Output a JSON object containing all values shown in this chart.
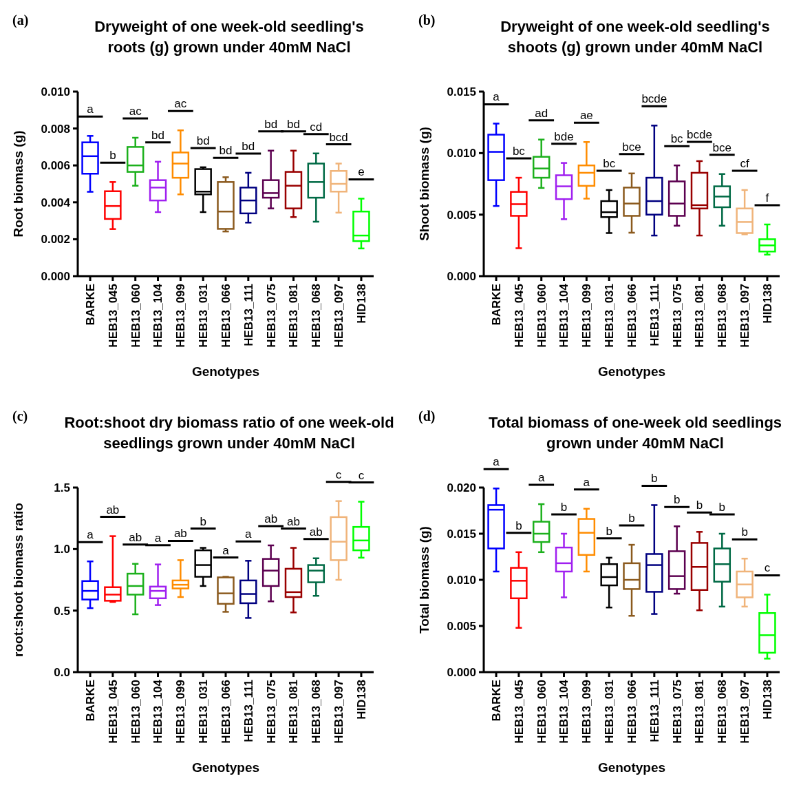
{
  "chart_data": [
    {
      "type": "box",
      "title": "Dryweight of one week-old seedling's\nroots (g) grown under 40mM NaCl",
      "xlabel": "Genotypes",
      "ylabel": "Root biomass (g)",
      "categories": [
        "BARKE",
        "HEB13_045",
        "HEB13_060",
        "HEB13_104",
        "HEB13_099",
        "HEB13_031",
        "HEB13_066",
        "HEB13_111",
        "HEB13_075",
        "HEB13_081",
        "HEB13_068",
        "HEB13_097",
        "HID138"
      ],
      "colors": [
        "#0000ff",
        "#ff0000",
        "#1cb01c",
        "#a020f0",
        "#ff8c00",
        "#000000",
        "#8b5a1e",
        "#000080",
        "#5c0050",
        "#990000",
        "#006a45",
        "#f0b47a",
        "#00ff00"
      ],
      "ylim": [
        0,
        0.01
      ],
      "yticks": [
        {
          "value": 0,
          "label": "0.000"
        },
        {
          "value": 0.002,
          "label": "0.002"
        },
        {
          "value": 0.004,
          "label": "0.004"
        },
        {
          "value": 0.006,
          "label": "0.006"
        },
        {
          "value": 0.008,
          "label": "0.008"
        },
        {
          "value": 0.01,
          "label": "0.010"
        }
      ],
      "boxes": [
        {
          "low": 0.00457,
          "q1": 0.00555,
          "median": 0.0065,
          "q3": 0.00725,
          "high": 0.0076
        },
        {
          "low": 0.00255,
          "q1": 0.0031,
          "median": 0.0038,
          "q3": 0.0046,
          "high": 0.0051
        },
        {
          "low": 0.0049,
          "q1": 0.00565,
          "median": 0.006,
          "q3": 0.007,
          "high": 0.0075
        },
        {
          "low": 0.00347,
          "q1": 0.0041,
          "median": 0.0048,
          "q3": 0.0052,
          "high": 0.0062
        },
        {
          "low": 0.00443,
          "q1": 0.00533,
          "median": 0.0061,
          "q3": 0.0067,
          "high": 0.0079
        },
        {
          "low": 0.00347,
          "q1": 0.00443,
          "median": 0.00458,
          "q3": 0.0058,
          "high": 0.0059
        },
        {
          "low": 0.00242,
          "q1": 0.00256,
          "median": 0.0035,
          "q3": 0.0051,
          "high": 0.00536
        },
        {
          "low": 0.0029,
          "q1": 0.0034,
          "median": 0.0041,
          "q3": 0.0048,
          "high": 0.0056
        },
        {
          "low": 0.00367,
          "q1": 0.00425,
          "median": 0.0045,
          "q3": 0.0052,
          "high": 0.0068
        },
        {
          "low": 0.0032,
          "q1": 0.00367,
          "median": 0.0049,
          "q3": 0.00565,
          "high": 0.0068
        },
        {
          "low": 0.00295,
          "q1": 0.00425,
          "median": 0.0051,
          "q3": 0.0061,
          "high": 0.00665
        },
        {
          "low": 0.00344,
          "q1": 0.00458,
          "median": 0.005,
          "q3": 0.0057,
          "high": 0.0061
        },
        {
          "low": 0.0015,
          "q1": 0.0019,
          "median": 0.0022,
          "q3": 0.0035,
          "high": 0.0042
        }
      ],
      "annotations": [
        "(a)",
        "a",
        "b",
        "ac",
        "bd",
        "ac",
        "bd",
        "bd",
        "bd",
        "bd",
        "bd",
        "cd",
        "bcd",
        "e"
      ]
    },
    {
      "type": "box",
      "title": "Dryweight of one week-old seedling's\nshoots (g) grown under 40mM NaCl",
      "xlabel": "Genotypes",
      "ylabel": "Shoot biomass (g)",
      "categories": [
        "BARKE",
        "HEB13_045",
        "HEB13_060",
        "HEB13_104",
        "HEB13_099",
        "HEB13_031",
        "HEB13_066",
        "HEB13_111",
        "HEB13_075",
        "HEB13_081",
        "HEB13_068",
        "HEB13_097",
        "HID138"
      ],
      "colors": [
        "#0000ff",
        "#ff0000",
        "#1cb01c",
        "#a020f0",
        "#ff8c00",
        "#000000",
        "#8b5a1e",
        "#000080",
        "#5c0050",
        "#990000",
        "#006a45",
        "#f0b47a",
        "#00ff00"
      ],
      "ylim": [
        0,
        0.015
      ],
      "yticks": [
        {
          "value": 0,
          "label": "0.000"
        },
        {
          "value": 0.005,
          "label": "0.005"
        },
        {
          "value": 0.01,
          "label": "0.010"
        },
        {
          "value": 0.015,
          "label": "0.015"
        }
      ],
      "boxes": [
        {
          "low": 0.0057,
          "q1": 0.0078,
          "median": 0.0101,
          "q3": 0.0115,
          "high": 0.0124
        },
        {
          "low": 0.00227,
          "q1": 0.0049,
          "median": 0.00585,
          "q3": 0.00685,
          "high": 0.008
        },
        {
          "low": 0.00717,
          "q1": 0.008,
          "median": 0.00875,
          "q3": 0.0097,
          "high": 0.0111
        },
        {
          "low": 0.00463,
          "q1": 0.00626,
          "median": 0.0073,
          "q3": 0.0082,
          "high": 0.0092
        },
        {
          "low": 0.0063,
          "q1": 0.00734,
          "median": 0.0084,
          "q3": 0.009,
          "high": 0.0109
        },
        {
          "low": 0.0035,
          "q1": 0.0048,
          "median": 0.0052,
          "q3": 0.0061,
          "high": 0.007
        },
        {
          "low": 0.00353,
          "q1": 0.0049,
          "median": 0.0059,
          "q3": 0.0072,
          "high": 0.00835
        },
        {
          "low": 0.0033,
          "q1": 0.005,
          "median": 0.0061,
          "q3": 0.008,
          "high": 0.01224
        },
        {
          "low": 0.0041,
          "q1": 0.0049,
          "median": 0.0059,
          "q3": 0.0077,
          "high": 0.009
        },
        {
          "low": 0.0033,
          "q1": 0.0055,
          "median": 0.00577,
          "q3": 0.0084,
          "high": 0.00935
        },
        {
          "low": 0.0041,
          "q1": 0.0056,
          "median": 0.00647,
          "q3": 0.0073,
          "high": 0.0083
        },
        {
          "low": 0.0034,
          "q1": 0.0035,
          "median": 0.0044,
          "q3": 0.0055,
          "high": 0.007
        },
        {
          "low": 0.00175,
          "q1": 0.002,
          "median": 0.0025,
          "q3": 0.003,
          "high": 0.0042
        }
      ],
      "annotations": [
        "(b)",
        "a",
        "bc",
        "ad",
        "bde",
        "ae",
        "bc",
        "bce",
        "bcde",
        "bc",
        "bcde",
        "bce",
        "cf",
        "f"
      ]
    },
    {
      "type": "box",
      "title": "Root:shoot dry biomass ratio of one week-old\nseedlings grown under 40mM NaCl",
      "xlabel": "Genotypes",
      "ylabel": "root:shoot biomass ratio",
      "categories": [
        "BARKE",
        "HEB13_045",
        "HEB13_060",
        "HEB13_104",
        "HEB13_099",
        "HEB13_031",
        "HEB13_066",
        "HEB13_111",
        "HEB13_075",
        "HEB13_081",
        "HEB13_068",
        "HEB13_097",
        "HID138"
      ],
      "colors": [
        "#0000ff",
        "#ff0000",
        "#1cb01c",
        "#a020f0",
        "#ff8c00",
        "#000000",
        "#8b5a1e",
        "#000080",
        "#5c0050",
        "#990000",
        "#006a45",
        "#f0b47a",
        "#00ff00"
      ],
      "ylim": [
        0,
        1.5
      ],
      "yticks": [
        {
          "value": 0,
          "label": "0.0"
        },
        0.5,
        {
          "value": 1,
          "label": "1.0"
        },
        1.5
      ],
      "boxes": [
        {
          "low": 0.52,
          "q1": 0.59,
          "median": 0.66,
          "q3": 0.74,
          "high": 0.9
        },
        {
          "low": 0.57,
          "q1": 0.58,
          "median": 0.63,
          "q3": 0.69,
          "high": 1.105
        },
        {
          "low": 0.47,
          "q1": 0.63,
          "median": 0.7,
          "q3": 0.8,
          "high": 0.88
        },
        {
          "low": 0.545,
          "q1": 0.6,
          "median": 0.66,
          "q3": 0.695,
          "high": 0.875
        },
        {
          "low": 0.61,
          "q1": 0.68,
          "median": 0.71,
          "q3": 0.745,
          "high": 0.91
        },
        {
          "low": 0.7,
          "q1": 0.775,
          "median": 0.87,
          "q3": 0.99,
          "high": 1.01
        },
        {
          "low": 0.49,
          "q1": 0.555,
          "median": 0.64,
          "q3": 0.77,
          "high": 0.775
        },
        {
          "low": 0.44,
          "q1": 0.56,
          "median": 0.635,
          "q3": 0.745,
          "high": 0.905
        },
        {
          "low": 0.575,
          "q1": 0.7,
          "median": 0.825,
          "q3": 0.92,
          "high": 1.03
        },
        {
          "low": 0.485,
          "q1": 0.61,
          "median": 0.65,
          "q3": 0.84,
          "high": 1.01
        },
        {
          "low": 0.62,
          "q1": 0.73,
          "median": 0.825,
          "q3": 0.87,
          "high": 0.925
        },
        {
          "low": 0.75,
          "q1": 0.91,
          "median": 1.06,
          "q3": 1.26,
          "high": 1.39
        },
        {
          "low": 0.93,
          "q1": 0.99,
          "median": 1.07,
          "q3": 1.18,
          "high": 1.385
        }
      ],
      "annotations": [
        "(c)",
        "a",
        "ab",
        "ab",
        "a",
        "ab",
        "b",
        "a",
        "a",
        "ab",
        "ab",
        "ab",
        "c",
        "c"
      ]
    },
    {
      "type": "box",
      "title": "Total biomass of one-week old seedlings\ngrown under 40mM NaCl",
      "xlabel": "Genotypes",
      "ylabel": "Total biomass (g)",
      "categories": [
        "BARKE",
        "HEB13_045",
        "HEB13_060",
        "HEB13_104",
        "HEB13_099",
        "HEB13_031",
        "HEB13_066",
        "HEB13_111",
        "HEB13_075",
        "HEB13_081",
        "HEB13_068",
        "HEB13_097",
        "HID138"
      ],
      "colors": [
        "#0000ff",
        "#ff0000",
        "#1cb01c",
        "#a020f0",
        "#ff8c00",
        "#000000",
        "#8b5a1e",
        "#000080",
        "#5c0050",
        "#990000",
        "#006a45",
        "#f0b47a",
        "#00ff00"
      ],
      "ylim": [
        0,
        0.02
      ],
      "yticks": [
        {
          "value": 0,
          "label": "0.000"
        },
        {
          "value": 0.005,
          "label": "0.005"
        },
        {
          "value": 0.01,
          "label": "0.010"
        },
        {
          "value": 0.015,
          "label": "0.015"
        },
        {
          "value": 0.02,
          "label": "0.020"
        }
      ],
      "boxes": [
        {
          "low": 0.0109,
          "q1": 0.0134,
          "median": 0.0176,
          "q3": 0.0181,
          "high": 0.0199
        },
        {
          "low": 0.0048,
          "q1": 0.008,
          "median": 0.0099,
          "q3": 0.0113,
          "high": 0.013
        },
        {
          "low": 0.013,
          "q1": 0.0141,
          "median": 0.015,
          "q3": 0.0163,
          "high": 0.0182
        },
        {
          "low": 0.0081,
          "q1": 0.0109,
          "median": 0.0118,
          "q3": 0.0135,
          "high": 0.015
        },
        {
          "low": 0.0109,
          "q1": 0.0127,
          "median": 0.0151,
          "q3": 0.0166,
          "high": 0.0177
        },
        {
          "low": 0.007,
          "q1": 0.0094,
          "median": 0.0103,
          "q3": 0.0117,
          "high": 0.0124
        },
        {
          "low": 0.0061,
          "q1": 0.009,
          "median": 0.01,
          "q3": 0.0118,
          "high": 0.0138
        },
        {
          "low": 0.0063,
          "q1": 0.0087,
          "median": 0.0116,
          "q3": 0.0128,
          "high": 0.0181
        },
        {
          "low": 0.0085,
          "q1": 0.009,
          "median": 0.0104,
          "q3": 0.0131,
          "high": 0.0158
        },
        {
          "low": 0.0067,
          "q1": 0.0089,
          "median": 0.0114,
          "q3": 0.014,
          "high": 0.0152
        },
        {
          "low": 0.0071,
          "q1": 0.0098,
          "median": 0.0117,
          "q3": 0.0134,
          "high": 0.015
        },
        {
          "low": 0.0071,
          "q1": 0.0081,
          "median": 0.0095,
          "q3": 0.0109,
          "high": 0.0123
        },
        {
          "low": 0.00146,
          "q1": 0.0021,
          "median": 0.004,
          "q3": 0.0064,
          "high": 0.0084
        }
      ],
      "annotations": [
        "(d)",
        "a",
        "b",
        "a",
        "b",
        "a",
        "b",
        "b",
        "b",
        "b",
        "b",
        "b",
        "b",
        "c"
      ]
    }
  ]
}
